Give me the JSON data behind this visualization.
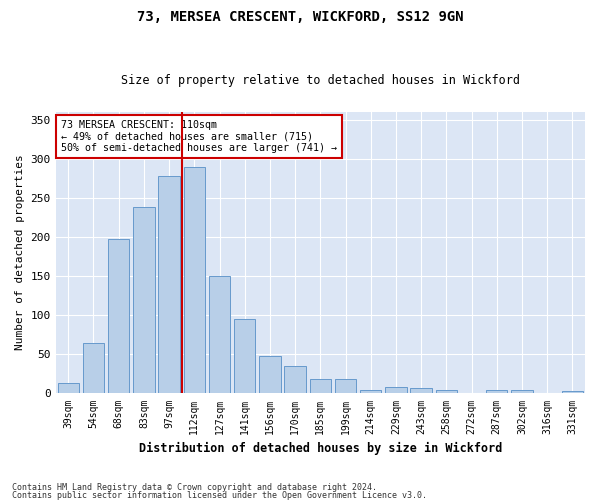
{
  "title1": "73, MERSEA CRESCENT, WICKFORD, SS12 9GN",
  "title2": "Size of property relative to detached houses in Wickford",
  "xlabel": "Distribution of detached houses by size in Wickford",
  "ylabel": "Number of detached properties",
  "footer1": "Contains HM Land Registry data © Crown copyright and database right 2024.",
  "footer2": "Contains public sector information licensed under the Open Government Licence v3.0.",
  "categories": [
    "39sqm",
    "54sqm",
    "68sqm",
    "83sqm",
    "97sqm",
    "112sqm",
    "127sqm",
    "141sqm",
    "156sqm",
    "170sqm",
    "185sqm",
    "199sqm",
    "214sqm",
    "229sqm",
    "243sqm",
    "258sqm",
    "272sqm",
    "287sqm",
    "302sqm",
    "316sqm",
    "331sqm"
  ],
  "values": [
    13,
    65,
    198,
    238,
    278,
    289,
    150,
    95,
    48,
    35,
    18,
    18,
    5,
    8,
    7,
    5,
    0,
    5,
    4,
    0,
    3
  ],
  "bar_color": "#b8cfe8",
  "bar_edge_color": "#6699cc",
  "bg_color": "#dce6f5",
  "grid_color": "#ffffff",
  "annotation_line1": "73 MERSEA CRESCENT: 110sqm",
  "annotation_line2": "← 49% of detached houses are smaller (715)",
  "annotation_line3": "50% of semi-detached houses are larger (741) →",
  "annotation_box_color": "#cc0000",
  "vline_index": 5,
  "ylim": [
    0,
    360
  ],
  "yticks": [
    0,
    50,
    100,
    150,
    200,
    250,
    300,
    350
  ],
  "fig_bg": "#ffffff"
}
